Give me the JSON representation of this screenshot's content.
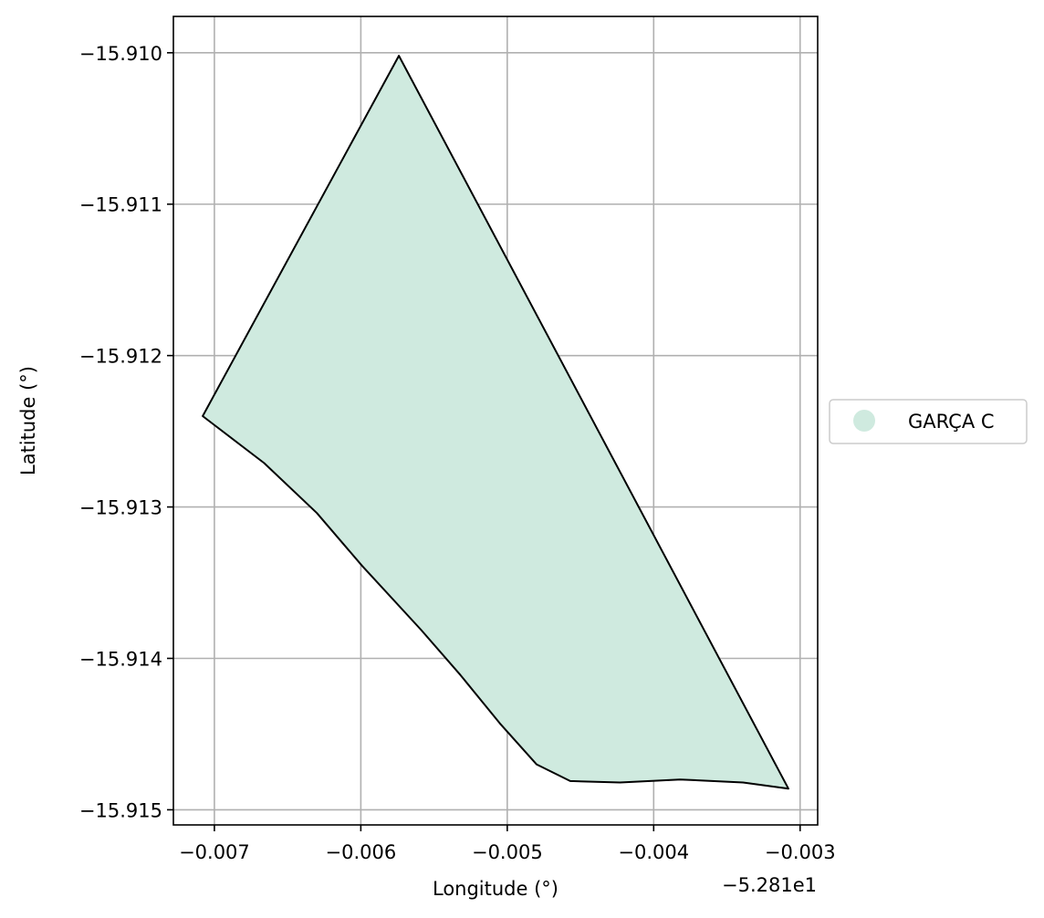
{
  "chart_data": {
    "type": "map",
    "xlabel": "Longitude (°)",
    "ylabel": "Latitude (°)",
    "x_offset_label": "−5.281e1",
    "x_ticks": [
      {
        "value": -0.007,
        "label": "−0.007"
      },
      {
        "value": -0.006,
        "label": "−0.006"
      },
      {
        "value": -0.005,
        "label": "−0.005"
      },
      {
        "value": -0.004,
        "label": "−0.004"
      },
      {
        "value": -0.003,
        "label": "−0.003"
      }
    ],
    "y_ticks": [
      {
        "value": -15.91,
        "label": "−15.910"
      },
      {
        "value": -15.911,
        "label": "−15.911"
      },
      {
        "value": -15.912,
        "label": "−15.912"
      },
      {
        "value": -15.913,
        "label": "−15.913"
      },
      {
        "value": -15.914,
        "label": "−15.914"
      },
      {
        "value": -15.915,
        "label": "−15.915"
      }
    ],
    "xlim": [
      -0.00728,
      -0.00288
    ],
    "ylim": [
      -15.9151,
      -15.90976
    ],
    "grid": true,
    "legend_position": "right",
    "fill_color": "#cfeadf",
    "edge_color": "#000000",
    "series": [
      {
        "name": "GARÇA C",
        "polygon": [
          [
            -0.00574,
            -15.91002
          ],
          [
            -0.00308,
            -15.91486
          ],
          [
            -0.00339,
            -15.91482
          ],
          [
            -0.00382,
            -15.9148
          ],
          [
            -0.00423,
            -15.91482
          ],
          [
            -0.00457,
            -15.91481
          ],
          [
            -0.0048,
            -15.9147
          ],
          [
            -0.00505,
            -15.91443
          ],
          [
            -0.00532,
            -15.91411
          ],
          [
            -0.00559,
            -15.91381
          ],
          [
            -0.00599,
            -15.91339
          ],
          [
            -0.0063,
            -15.91304
          ],
          [
            -0.00666,
            -15.91271
          ],
          [
            -0.00708,
            -15.9124
          ],
          [
            -0.00574,
            -15.91002
          ]
        ]
      }
    ]
  }
}
